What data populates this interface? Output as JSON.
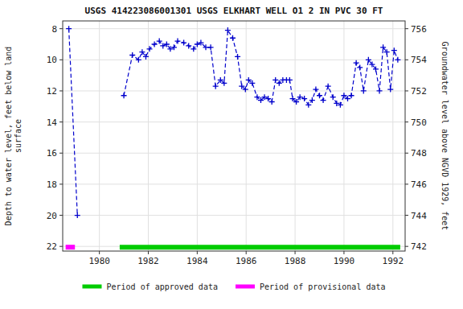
{
  "chart_data": {
    "type": "line",
    "title": "USGS 414223086001301 USGS ELKHART WELL O1 2 IN PVC 30 FT",
    "y_label": "Depth to water level, feet below land\nsurface",
    "y2_label": "Groundwater level above NGVD 1929, feet",
    "xlim": [
      1978.5,
      1992.5
    ],
    "xticks": [
      1980,
      1982,
      1984,
      1986,
      1988,
      1990,
      1992
    ],
    "ylim": [
      22.3,
      7.5
    ],
    "yticks": [
      8,
      10,
      12,
      14,
      16,
      18,
      20,
      22
    ],
    "y2lim": [
      741.7,
      756.5
    ],
    "y2ticks": [
      742,
      744,
      746,
      748,
      750,
      752,
      754,
      756
    ],
    "grid": true,
    "legend": "bottom",
    "series": [
      {
        "type": "line",
        "color": "#0000cc",
        "line_style": "dashed",
        "marker": "plus",
        "x": [
          1978.75,
          1979.1
        ],
        "values": [
          8.0,
          20.0
        ]
      },
      {
        "type": "line",
        "color": "#0000cc",
        "line_style": "dashed",
        "marker": "plus",
        "x": [
          1981.0,
          1981.35,
          1981.6,
          1981.75,
          1981.9,
          1982.05,
          1982.25,
          1982.45,
          1982.6,
          1982.75,
          1982.9,
          1983.05,
          1983.2,
          1983.45,
          1983.65,
          1983.85,
          1984.0,
          1984.15,
          1984.35,
          1984.55,
          1984.75,
          1984.95,
          1985.1,
          1985.25,
          1985.45,
          1985.65,
          1985.82,
          1985.97,
          1986.1,
          1986.25,
          1986.45,
          1986.6,
          1986.75,
          1986.9,
          1987.05,
          1987.2,
          1987.35,
          1987.5,
          1987.65,
          1987.78,
          1987.9,
          1988.05,
          1988.2,
          1988.38,
          1988.55,
          1988.7,
          1988.85,
          1989.0,
          1989.15,
          1989.35,
          1989.55,
          1989.7,
          1989.85,
          1990.0,
          1990.15,
          1990.3,
          1990.5,
          1990.65,
          1990.8,
          1991.0,
          1991.15,
          1991.3,
          1991.45,
          1991.6,
          1991.75,
          1991.9,
          1992.05,
          1992.2
        ],
        "values": [
          12.3,
          9.7,
          10.0,
          9.5,
          9.8,
          9.3,
          9.0,
          8.8,
          9.1,
          9.0,
          9.3,
          9.2,
          8.8,
          8.9,
          9.1,
          9.3,
          9.0,
          8.9,
          9.2,
          9.2,
          11.7,
          11.3,
          11.5,
          8.1,
          8.6,
          9.8,
          11.7,
          11.9,
          11.3,
          11.5,
          12.4,
          12.6,
          12.4,
          12.5,
          12.7,
          11.3,
          11.5,
          11.3,
          11.3,
          11.3,
          12.5,
          12.7,
          12.4,
          12.5,
          12.9,
          12.6,
          11.9,
          12.3,
          12.6,
          11.7,
          12.4,
          12.8,
          12.9,
          12.3,
          12.5,
          12.3,
          10.2,
          10.5,
          12.0,
          10.0,
          10.3,
          10.6,
          12.0,
          9.2,
          9.5,
          11.9,
          9.4,
          10.0
        ]
      },
      {
        "type": "span",
        "name": "Period of approved data",
        "color": "#00cc00",
        "x": [
          1980.83,
          1992.3
        ],
        "values": [
          22.05,
          22.05
        ]
      },
      {
        "type": "span",
        "name": "Period of provisional data",
        "color": "#ff00ff",
        "x": [
          1978.62,
          1979.0
        ],
        "values": [
          22.05,
          22.05
        ]
      }
    ]
  }
}
